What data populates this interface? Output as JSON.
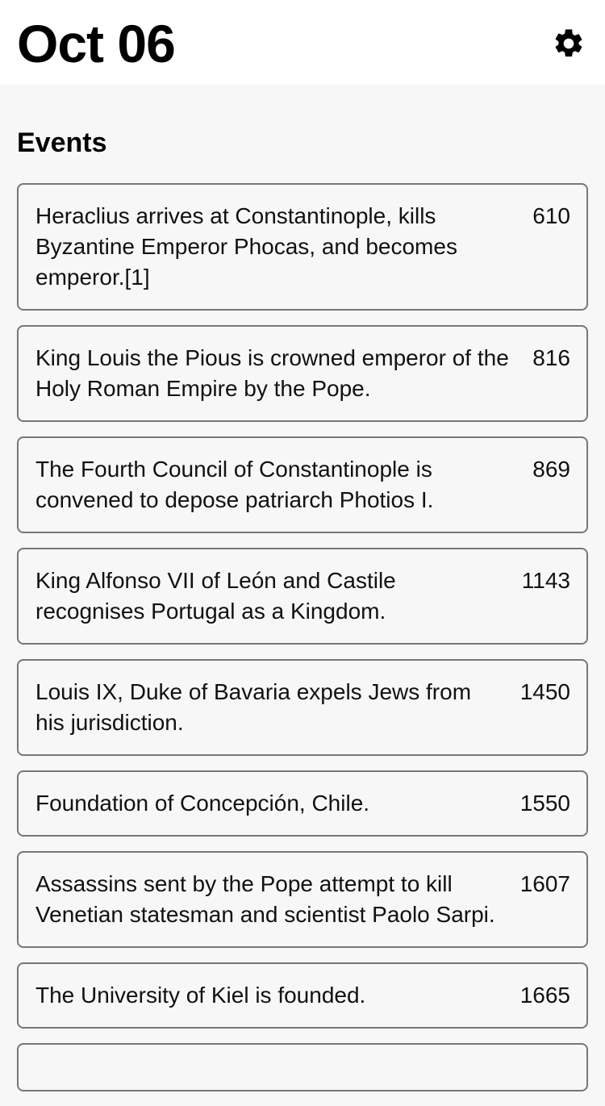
{
  "header": {
    "title": "Oct 06",
    "settings_icon": "gear-icon"
  },
  "section": {
    "title": "Events"
  },
  "events": [
    {
      "text": "Heraclius arrives at Constantinople, kills Byzantine Emperor Phocas, and becomes emperor.[1]",
      "year": "610"
    },
    {
      "text": "King Louis the Pious is crowned emperor of the Holy Roman Empire by the Pope.",
      "year": "816"
    },
    {
      "text": "The Fourth Council of Constantinople is convened to depose patriarch Photios I.",
      "year": "869"
    },
    {
      "text": "King Alfonso VII of León and Castile recognises Portugal as a Kingdom.",
      "year": "1143"
    },
    {
      "text": "Louis IX, Duke of Bavaria expels Jews from his jurisdiction.",
      "year": "1450"
    },
    {
      "text": "Foundation of Concepción, Chile.",
      "year": "1550"
    },
    {
      "text": "Assassins sent by the Pope attempt to kill Venetian statesman and scientist Paolo Sarpi.",
      "year": "1607"
    },
    {
      "text": "The University of Kiel is founded.",
      "year": "1665"
    },
    {
      "text": "",
      "year": ""
    }
  ]
}
